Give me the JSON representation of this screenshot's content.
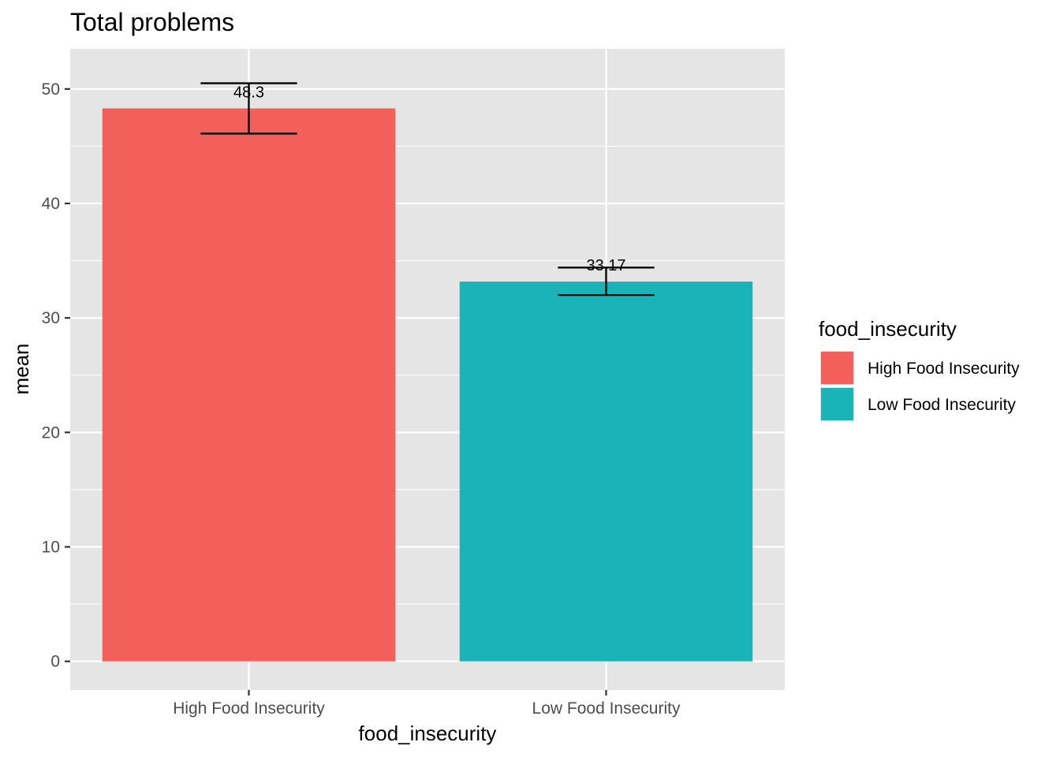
{
  "chart_data": {
    "type": "bar",
    "title": "Total problems",
    "xlabel": "food_insecurity",
    "ylabel": "mean",
    "categories": [
      "High Food Insecurity",
      "Low Food Insecurity"
    ],
    "values": [
      48.3,
      33.17
    ],
    "value_labels": [
      "48.3",
      "33.17"
    ],
    "error_bars": [
      {
        "lower": 46.1,
        "upper": 50.5
      },
      {
        "lower": 32.0,
        "upper": 34.4
      }
    ],
    "colors": [
      "#F35F5B",
      "#19B3B8"
    ],
    "ylim": [
      -2.5,
      53.5
    ],
    "yticks": [
      0,
      10,
      20,
      30,
      40,
      50
    ],
    "grid": true,
    "legend": {
      "title": "food_insecurity",
      "placement": "right",
      "items": [
        "High Food Insecurity",
        "Low Food Insecurity"
      ]
    },
    "panel_background": "#E5E5E5",
    "grid_color": "#FFFFFF"
  }
}
